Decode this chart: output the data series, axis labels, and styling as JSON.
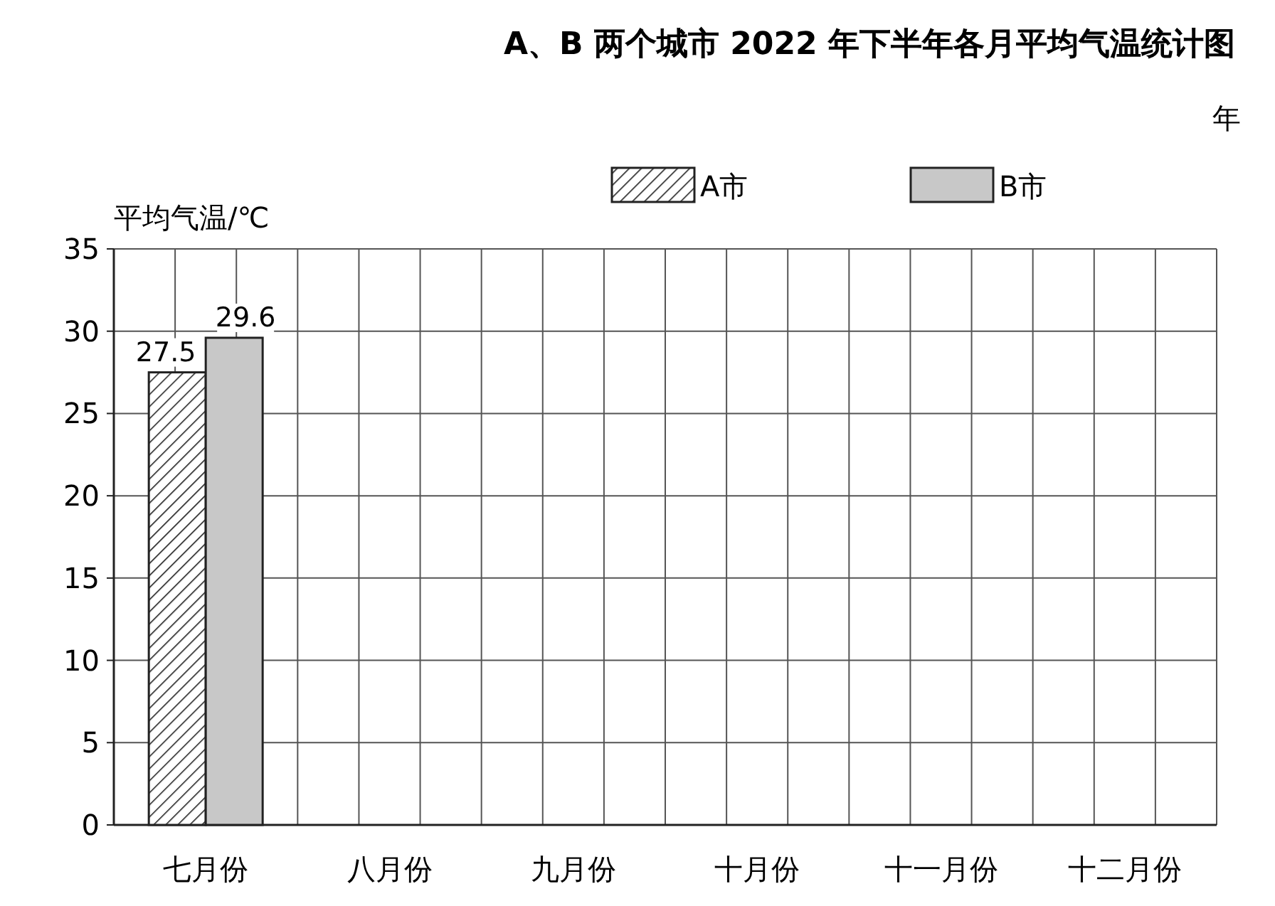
{
  "chart_data": {
    "type": "bar",
    "title": "A、B 两个城市 2022 年下半年各月平均气温统计图",
    "ylabel": "平均气温/℃",
    "annotations": [
      "年"
    ],
    "categories": [
      "七月份",
      "八月份",
      "九月份",
      "十月份",
      "十一月份",
      "十二月份"
    ],
    "series": [
      {
        "name": "A市",
        "color": "#222222",
        "values": [
          27.5,
          null,
          null,
          null,
          null,
          null
        ]
      },
      {
        "name": "B市",
        "color": "#c8c8c8",
        "values": [
          29.6,
          null,
          null,
          null,
          null,
          null
        ]
      }
    ],
    "ylim": [
      0,
      35
    ],
    "yticks": [
      0,
      5,
      10,
      15,
      20,
      25,
      30,
      35
    ],
    "grid": true,
    "legend": "top",
    "data_labels": true
  }
}
